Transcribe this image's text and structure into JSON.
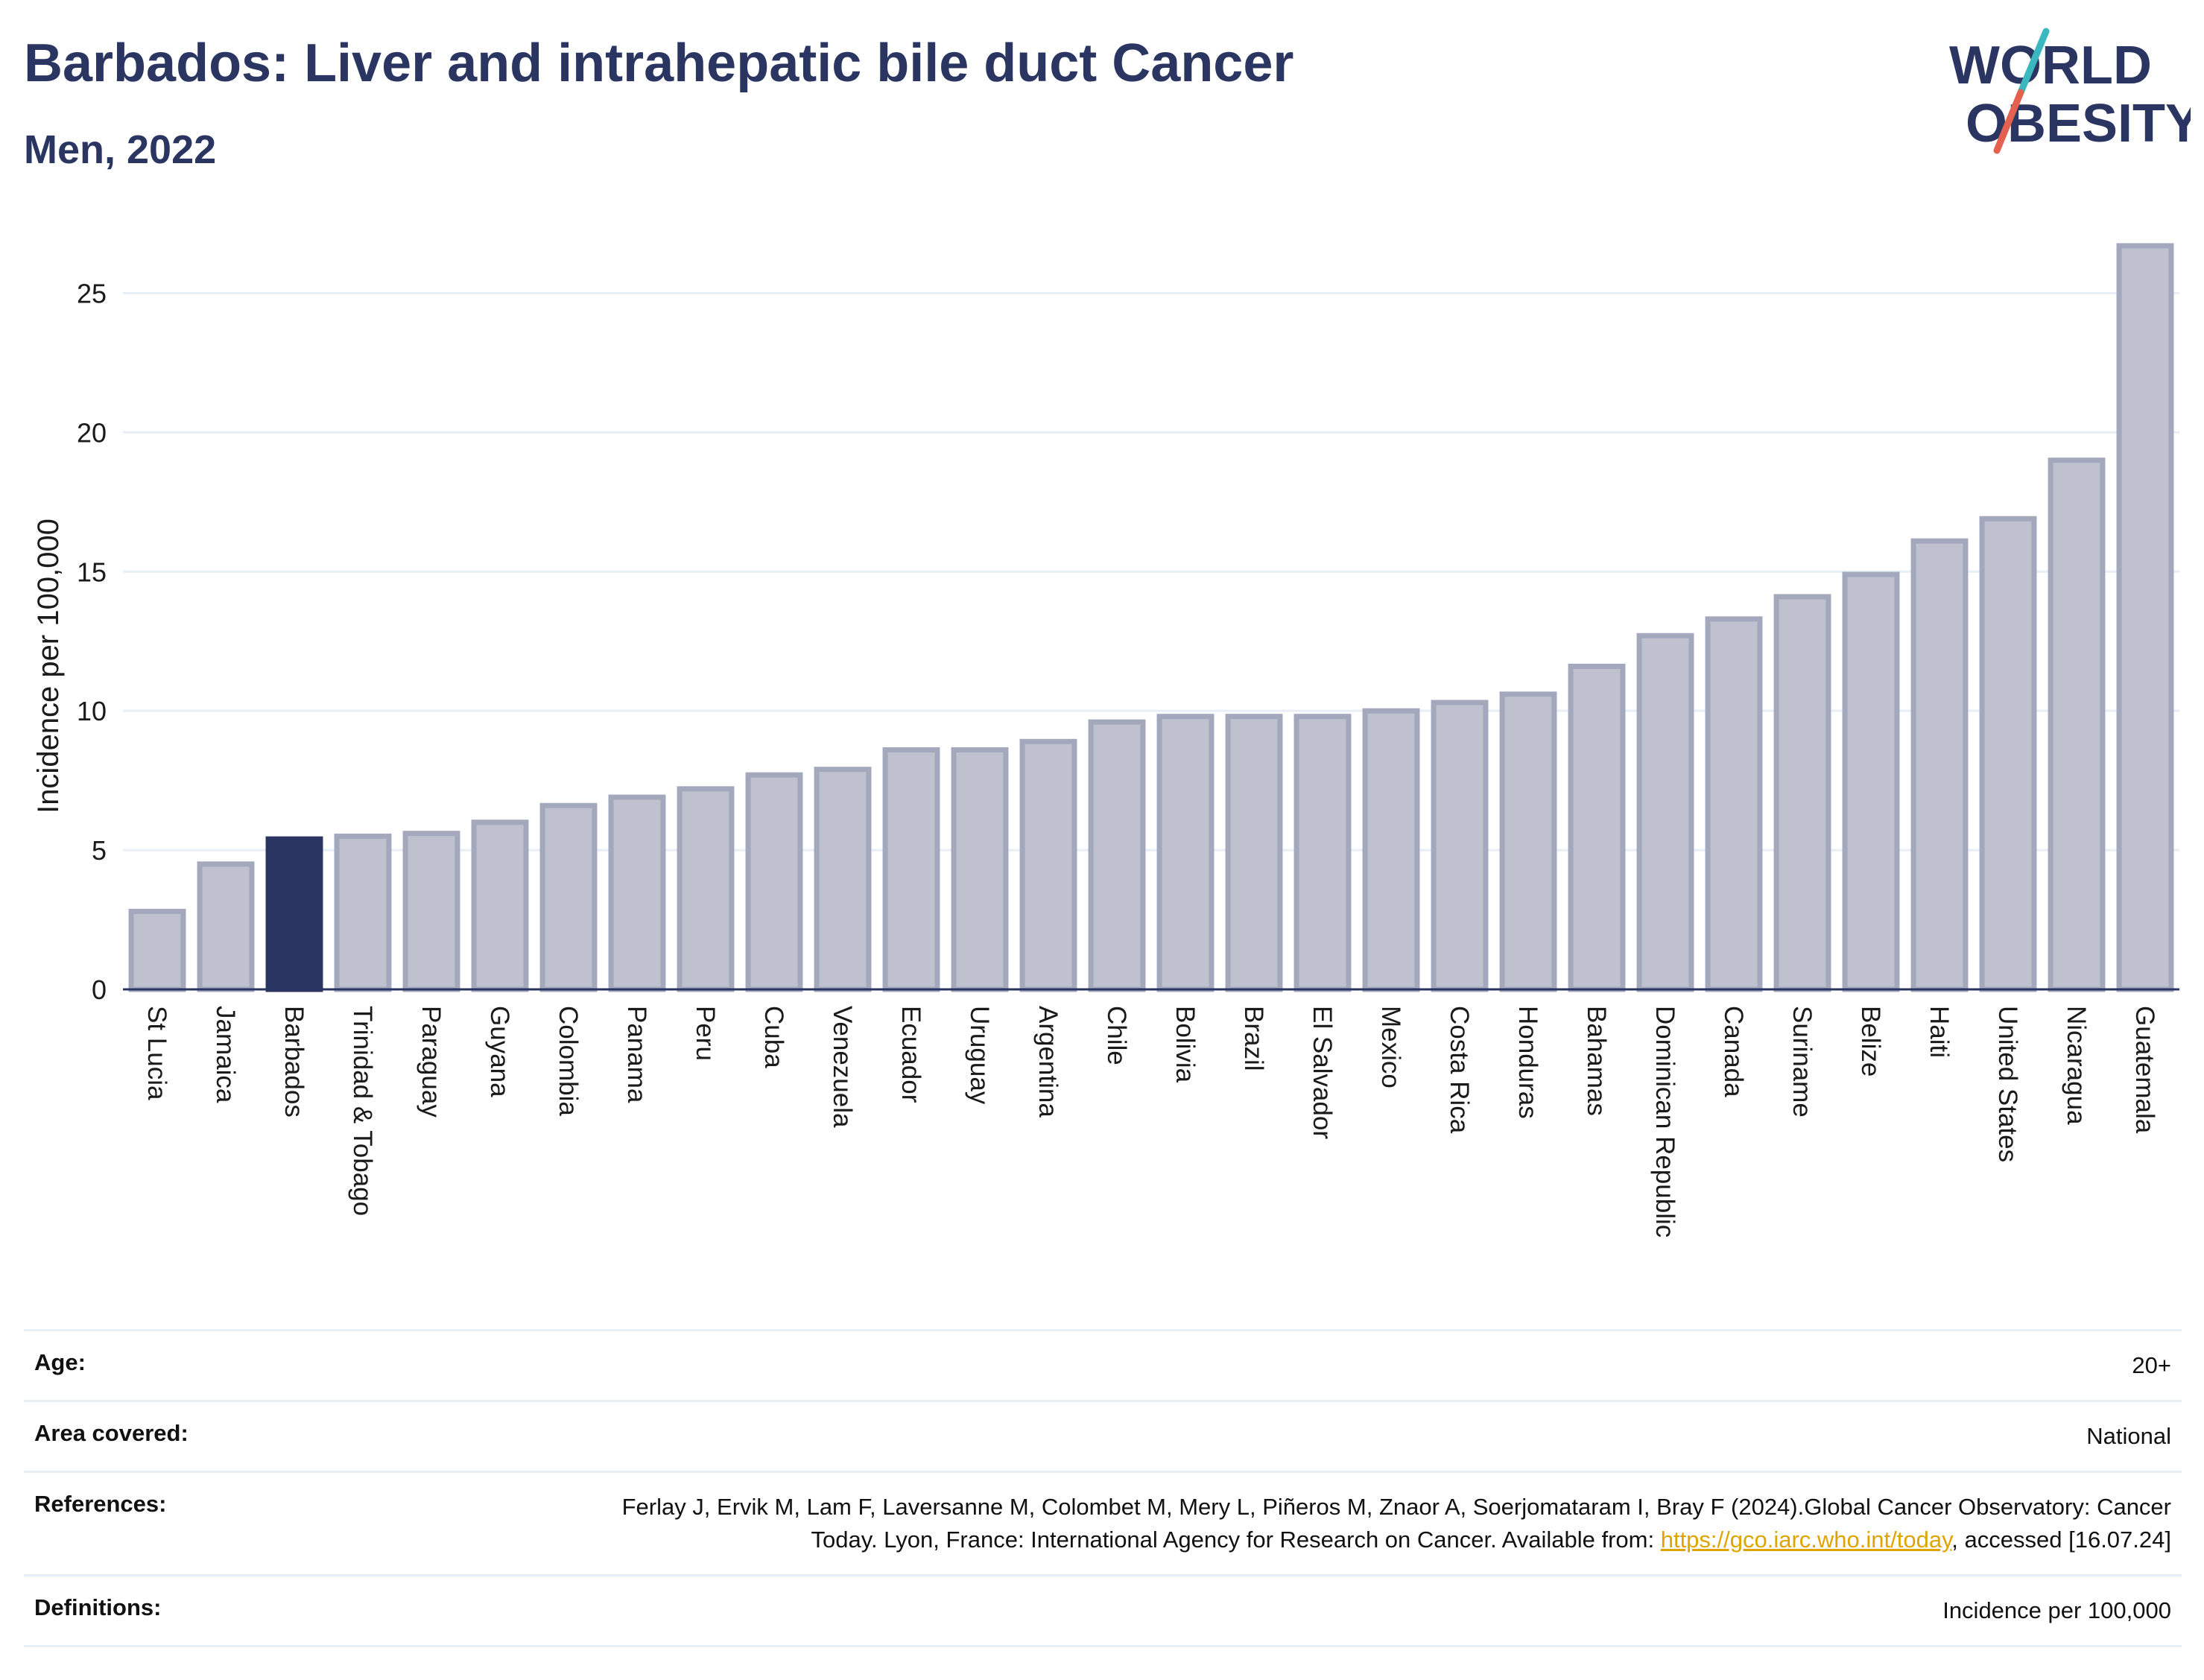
{
  "header": {
    "title": "Barbados: Liver and intrahepatic bile duct Cancer",
    "subtitle": "Men, 2022"
  },
  "logo": {
    "line1": "WORLD",
    "line2": "OBESITY",
    "colors": {
      "text": "#2b3561",
      "slash_teal": "#3ab7bf",
      "slash_red": "#e4604f"
    }
  },
  "colors": {
    "highlight_bar": "#2b3561",
    "bar_fill": "#bfc2ce",
    "bar_stroke": "#a3a8bd",
    "gridline": "#e7eef5",
    "baseline": "#2b3561"
  },
  "chart_data": {
    "type": "bar",
    "title": "Barbados: Liver and intrahepatic bile duct Cancer",
    "subtitle": "Men, 2022",
    "xlabel": "",
    "ylabel": "Incidence per 100,000",
    "ylim": [
      0,
      27.5
    ],
    "yticks": [
      0,
      5,
      10,
      15,
      20,
      25
    ],
    "grid": true,
    "highlight": "Barbados",
    "categories": [
      "St Lucia",
      "Jamaica",
      "Barbados",
      "Trinidad & Tobago",
      "Paraguay",
      "Guyana",
      "Colombia",
      "Panama",
      "Peru",
      "Cuba",
      "Venezuela",
      "Ecuador",
      "Uruguay",
      "Argentina",
      "Chile",
      "Bolivia",
      "Brazil",
      "El Salvador",
      "Mexico",
      "Costa Rica",
      "Honduras",
      "Bahamas",
      "Dominican Republic",
      "Canada",
      "Suriname",
      "Belize",
      "Haiti",
      "United States",
      "Nicaragua",
      "Guatemala"
    ],
    "values": [
      2.8,
      4.5,
      5.4,
      5.5,
      5.6,
      6.0,
      6.6,
      6.9,
      7.2,
      7.7,
      7.9,
      8.6,
      8.6,
      8.9,
      9.6,
      9.8,
      9.8,
      9.8,
      10.0,
      10.3,
      10.6,
      11.6,
      12.7,
      13.3,
      14.1,
      14.9,
      16.1,
      16.9,
      19.0,
      26.7
    ]
  },
  "meta": [
    {
      "key": "Age:",
      "value": "20+"
    },
    {
      "key": "Area covered:",
      "value": "National"
    },
    {
      "key": "References:",
      "value_pre": "Ferlay J, Ervik M, Lam F, Laversanne M, Colombet M, Mery L, Piñeros M, Znaor A, Soerjomataram I, Bray F (2024).Global Cancer Observatory: Cancer Today. Lyon, France: International Agency for Research on Cancer. Available from: ",
      "link": "https://gco.iarc.who.int/today",
      "value_post": ", accessed [16.07.24]"
    },
    {
      "key": "Definitions:",
      "value": "Incidence per 100,000"
    }
  ]
}
